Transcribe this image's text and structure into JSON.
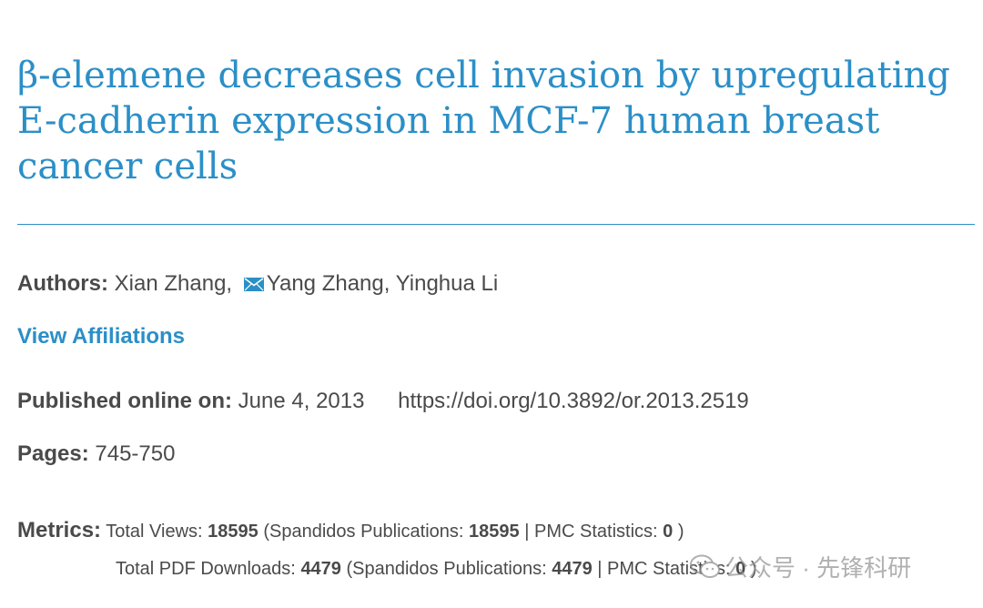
{
  "article": {
    "title": "β-elemene decreases cell invasion by upregulating E-cadherin expression in MCF-7 human breast cancer cells"
  },
  "authors": {
    "label": "Authors:",
    "first": "Xian Zhang,",
    "corresponding": "Yang Zhang, Yinghua Li",
    "mail_icon": "envelope-icon"
  },
  "affiliations_link": "View Affiliations",
  "published": {
    "label": "Published online on:",
    "date": "June 4, 2013",
    "doi": "https://doi.org/10.3892/or.2013.2519"
  },
  "pages": {
    "label": "Pages:",
    "value": "745-750"
  },
  "metrics": {
    "label": "Metrics:",
    "views_label": "Total Views:",
    "views": "18595",
    "views_spandidos_label": "(Spandidos Publications:",
    "views_spandidos": "18595",
    "views_sep": "|",
    "views_pmc_label": "PMC Statistics:",
    "views_pmc": "0",
    "views_close": ")",
    "downloads_label": "Total PDF Downloads:",
    "downloads": "4479",
    "downloads_spandidos_label": "(Spandidos Publications:",
    "downloads_spandidos": "4479",
    "downloads_sep": "|",
    "downloads_pmc_label": "PMC Statistics:",
    "downloads_pmc": "0",
    "downloads_close": ")"
  },
  "watermark": {
    "text": "公众号 · 先锋科研",
    "icon": "wechat-icon"
  },
  "colors": {
    "accent": "#2b8fc7",
    "text": "#4a4a4a"
  }
}
